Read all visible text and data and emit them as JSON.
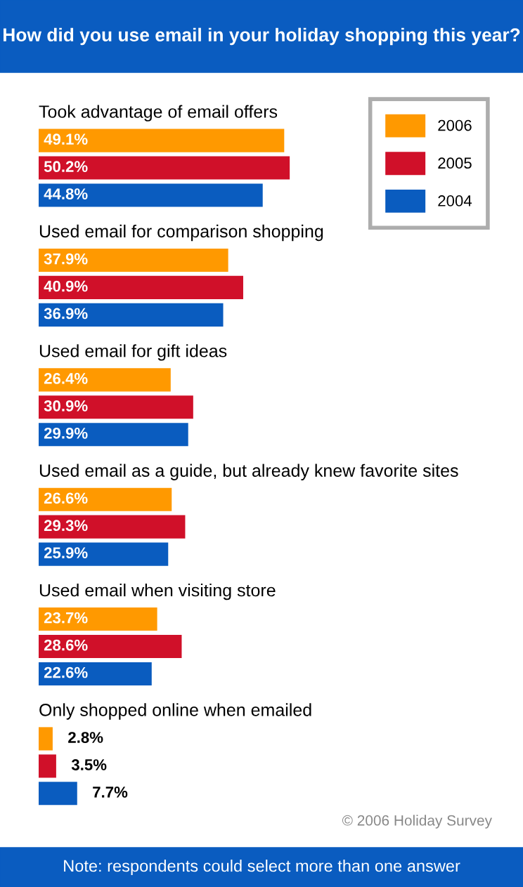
{
  "chart_data": {
    "type": "bar",
    "orientation": "horizontal",
    "title": "How did you use email in your holiday shopping this year?",
    "categories": [
      "Took advantage of email offers",
      "Used email for comparison shopping",
      "Used email for gift ideas",
      "Used email as a guide, but already knew favorite sites",
      "Used email when visiting store",
      "Only shopped online when emailed"
    ],
    "series": [
      {
        "name": "2006",
        "color": "#ff9900",
        "values": [
          49.1,
          37.9,
          26.4,
          26.6,
          23.7,
          2.8
        ],
        "value_labels": [
          "49.1%",
          "37.9%",
          "26.4%",
          "26.6%",
          "23.7%",
          "2.8%"
        ]
      },
      {
        "name": "2005",
        "color": "#d01029",
        "values": [
          50.2,
          40.9,
          30.9,
          29.3,
          28.6,
          3.5
        ],
        "value_labels": [
          "50.2%",
          "40.9%",
          "30.9%",
          "29.3%",
          "28.6%",
          "3.5%"
        ]
      },
      {
        "name": "2004",
        "color": "#0a5cbf",
        "values": [
          44.8,
          36.9,
          29.9,
          25.9,
          22.6,
          7.7
        ],
        "value_labels": [
          "44.8%",
          "36.9%",
          "29.9%",
          "25.9%",
          "22.6%",
          "7.7%"
        ]
      }
    ],
    "legend": "top right",
    "annotations": [
      "© 2006 Holiday Survey",
      "Note: respondents could select more than one answer"
    ]
  }
}
